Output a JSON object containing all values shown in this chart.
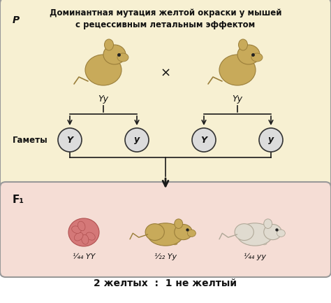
{
  "title": "Доминантная мутация желтой окраски у мышей\nс рецессивным летальным эффектом",
  "p_label": "P",
  "f1_label": "F₁",
  "gametes_label": "Гаметы",
  "cross_symbol": "×",
  "parent_genotype_left": "Yy",
  "parent_genotype_right": "Yy",
  "gamete_left1": "Y",
  "gamete_left2": "y",
  "gamete_right1": "Y",
  "gamete_right2": "y",
  "offspring1_label": "¼₄ YY",
  "offspring2_label": "½₂ Yy",
  "offspring3_label": "¼₄ yy",
  "ratio_label": "2 желтых  :  1 не желтый",
  "top_box_bg": "#f7f0d2",
  "top_box_border": "#999999",
  "bottom_box_bg": "#f5ddd5",
  "bottom_box_border": "#999999",
  "circle_fill": "#dcdcdc",
  "circle_edge": "#333333",
  "arrow_color": "#1a1a1a",
  "text_color": "#111111",
  "ratio_color": "#111111",
  "mouse_yellow_body": "#c8aa5a",
  "mouse_yellow_dark": "#9a7e3a",
  "mouse_pink_color": "#d47878",
  "mouse_white_body": "#e0dbd0",
  "mouse_white_dark": "#b0a898",
  "fig_bg": "#ffffff"
}
